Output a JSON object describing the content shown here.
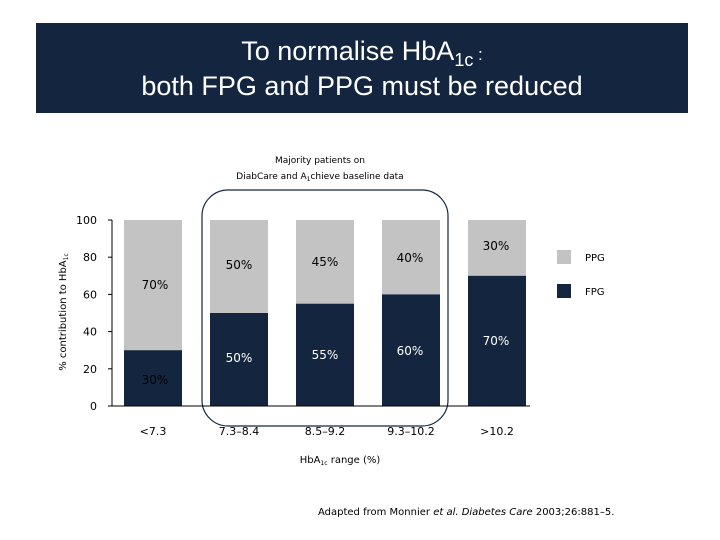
{
  "title": {
    "line1_prefix": "To  normalise  HbA",
    "line1_subscript": "1c",
    "line1_suffix": " :",
    "line2": "both  FPG and PPG  must be  reduced"
  },
  "note": {
    "line1": "Majority patients on",
    "line2_prefix": "DiabCare and A",
    "line2_subscript": "1",
    "line2_suffix": "chieve baseline data"
  },
  "colors": {
    "PPG": "#c3c3c3",
    "FPG": "#14263f",
    "band": "#14263f",
    "highlight": "#14263f"
  },
  "chart_data": {
    "type": "bar",
    "stacked": true,
    "categories": [
      "<7.3",
      "7.3–8.4",
      "8.5–9.2",
      "9.3–10.2",
      ">10.2"
    ],
    "series": [
      {
        "name": "FPG",
        "values": [
          30,
          50,
          55,
          60,
          70
        ],
        "labels": [
          "30%",
          "50%",
          "55%",
          "60%",
          "70%"
        ]
      },
      {
        "name": "PPG",
        "values": [
          70,
          50,
          45,
          40,
          30
        ],
        "labels": [
          "70%",
          "50%",
          "45%",
          "40%",
          "30%"
        ]
      }
    ],
    "ylim": [
      0,
      100
    ],
    "yticks": [
      "0",
      "20",
      "40",
      "60",
      "80",
      "100"
    ],
    "ylabel": {
      "text": "% contribution to HbA",
      "subscript": "1c"
    },
    "xlabel": {
      "prefix": "HbA",
      "subscript": "1c",
      "suffix": " range (%)"
    },
    "legend": {
      "position": "right",
      "items": [
        "PPG",
        "FPG"
      ]
    },
    "highlight": {
      "categories": [
        "7.3–8.4",
        "8.5–9.2",
        "9.3–10.2"
      ]
    },
    "grid": false
  },
  "source": {
    "prefix": "Adapted from Monnier ",
    "etal": "et al. ",
    "journal": "Diabetes Care",
    "suffix": " 2003;26:881–5."
  }
}
